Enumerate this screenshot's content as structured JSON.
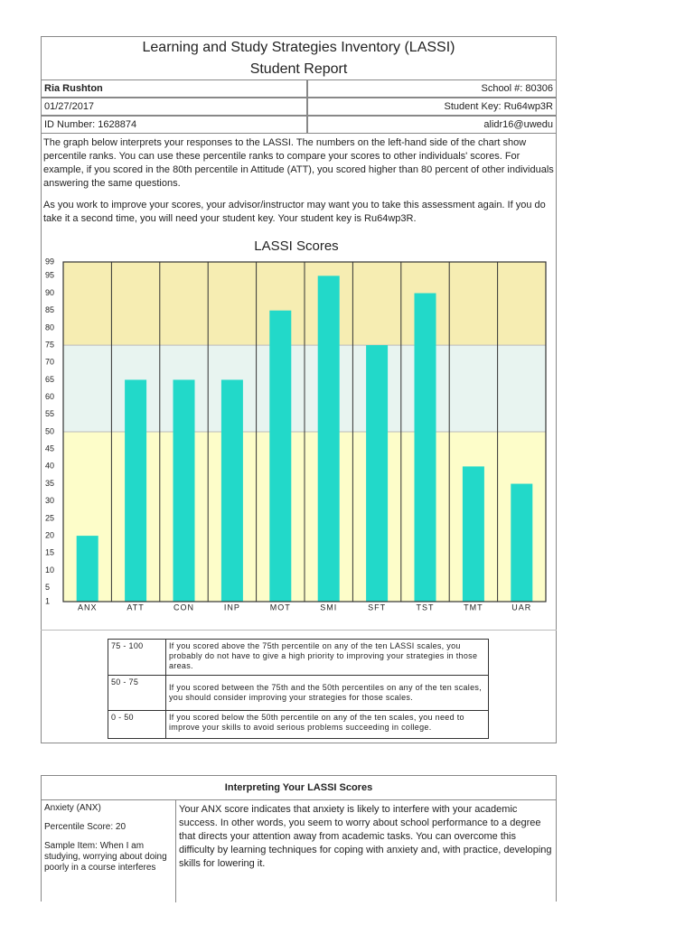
{
  "header": {
    "title": "Learning and Study Strategies Inventory (LASSI)",
    "subtitle": "Student Report"
  },
  "info": {
    "rows": [
      [
        "Ria Rushton",
        "School #: 80306"
      ],
      [
        "01/27/2017",
        "Student Key: Ru64wp3R"
      ],
      [
        "ID Number: 1628874",
        "alidr16@uwedu"
      ]
    ]
  },
  "intro": {
    "paragraphs": [
      "The graph below interprets your responses to the LASSI. The numbers on the left-hand side of the chart show percentile ranks. You can use these percentile ranks to compare your scores to other individuals' scores. For example, if you scored in the 80th percentile in Attitude (ATT), you scored higher than 80 percent of other individuals answering the same questions.",
      "As you work to improve your scores, your advisor/instructor may want you to take this assessment again. If you do take it a second time, you will need your student key. Your student key is Ru64wp3R."
    ]
  },
  "chart_data": {
    "type": "bar",
    "title": "LASSI Scores",
    "categories": [
      "ANX",
      "ATT",
      "CON",
      "INP",
      "MOT",
      "SMI",
      "SFT",
      "TST",
      "TMT",
      "UAR"
    ],
    "values": [
      20,
      65,
      65,
      65,
      85,
      95,
      75,
      90,
      40,
      35
    ],
    "color": "#22d9c9",
    "ylim": [
      1,
      99
    ],
    "yticks": [
      1,
      5,
      10,
      15,
      20,
      25,
      30,
      35,
      40,
      45,
      50,
      55,
      60,
      65,
      70,
      75,
      80,
      85,
      90,
      95,
      99
    ],
    "bands": [
      {
        "from": 75,
        "to": 99,
        "color": "#f6edb2"
      },
      {
        "from": 50,
        "to": 75,
        "color": "#e8f4f0"
      },
      {
        "from": 1,
        "to": 50,
        "color": "#fdfdc9"
      }
    ]
  },
  "legend_table": {
    "rows": [
      [
        "75 - 100",
        "If you scored above the 75th percentile on any of the ten LASSI scales, you probably do not have to give a high priority to improving your strategies in those areas."
      ],
      [
        "50 - 75",
        "If you scored between the 75th and the 50th percentiles on any of the ten scales, you should consider improving your strategies for those scales."
      ],
      [
        "0 - 50",
        "If you scored below the 50th percentile on any of the ten scales, you need to improve your skills to avoid serious problems succeeding in college."
      ]
    ]
  },
  "interpretation": {
    "title": "Interpreting Your LASSI Scores",
    "rows": [
      {
        "scale": "Anxiety (ANX)",
        "score": "Percentile Score: 20",
        "sample": "Sample Item: When I am studying, worrying about doing poorly in a course interferes",
        "text": "Your ANX score indicates that anxiety is likely to interfere with your academic success. In other words, you seem to worry about school performance to a degree that directs your attention away from academic tasks. You can overcome this difficulty by learning techniques for coping with anxiety and, with practice, developing skills for lowering it."
      }
    ]
  }
}
